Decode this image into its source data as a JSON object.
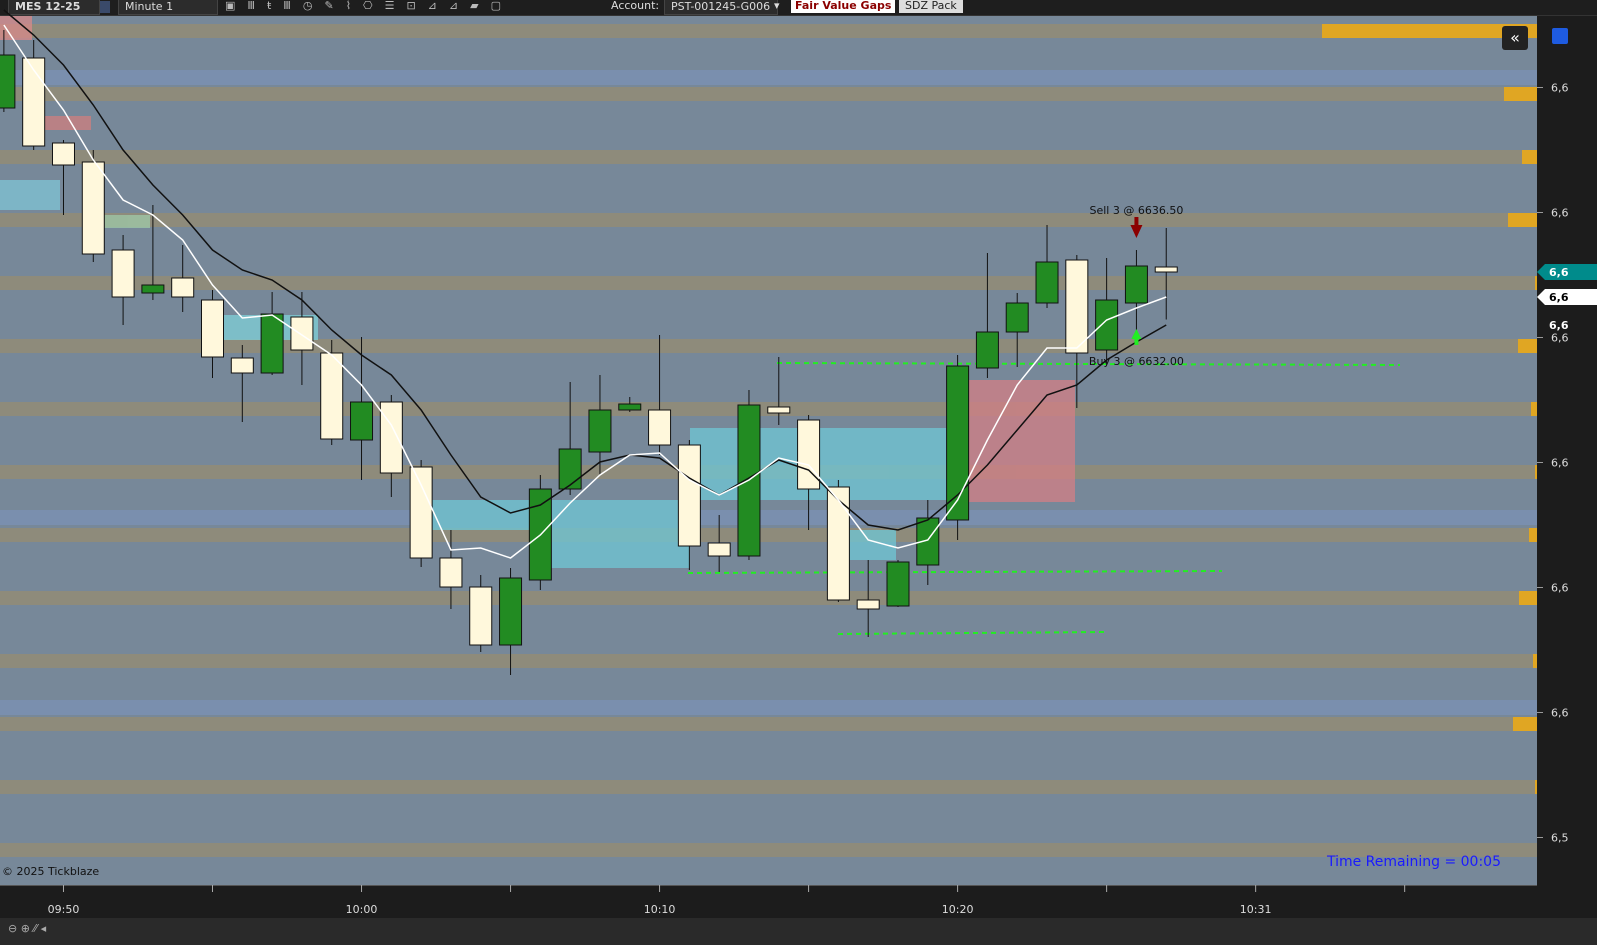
{
  "toolbar": {
    "symbol": "MES 12-25",
    "interval": "Minute 1",
    "account_label": "Account:",
    "account": "PST-001245-G006",
    "buttons": [
      "Fair Value Gaps",
      "SDZ Pack"
    ]
  },
  "footer": {
    "copyright": "© 2025 Tickblaze",
    "timer": "Time Remaining = 00:05"
  },
  "chart_data": {
    "type": "candlestick",
    "x": [
      0,
      1,
      2,
      3,
      4,
      5,
      6,
      7,
      8,
      9,
      10,
      11,
      12,
      13,
      14,
      15,
      16,
      17,
      18,
      19,
      20,
      21,
      22,
      23,
      24,
      25,
      26,
      27,
      28,
      29,
      30,
      31,
      32,
      33,
      34,
      35,
      36,
      37,
      38,
      39
    ],
    "open": [
      6653.36,
      6657.36,
      6650.56,
      6649.04,
      6642.0,
      6638.56,
      6639.76,
      6638.0,
      6633.36,
      6632.16,
      6636.64,
      6633.76,
      6626.8,
      6629.84,
      6624.64,
      6617.36,
      6615.04,
      6610.4,
      6615.6,
      6622.88,
      6625.84,
      6629.2,
      6629.2,
      6626.4,
      6618.56,
      6617.52,
      6629.44,
      6628.4,
      6623.04,
      6614.0,
      6613.52,
      6616.8,
      6620.4,
      6632.56,
      6635.44,
      6637.76,
      6641.2,
      6634.0,
      6637.76,
      6640.64
    ],
    "high": [
      6659.6,
      6658.8,
      6650.8,
      6650.0,
      6643.2,
      6645.6,
      6642.4,
      6638.8,
      6634.4,
      6638.64,
      6638.64,
      6634.8,
      6635.04,
      6630.4,
      6625.2,
      6619.6,
      6616.0,
      6616.56,
      6624.0,
      6631.44,
      6632.0,
      6630.24,
      6635.2,
      6626.8,
      6620.8,
      6630.8,
      6633.44,
      6628.8,
      6623.6,
      6617.2,
      6617.2,
      6622.0,
      6633.6,
      6641.76,
      6638.56,
      6644.0,
      6641.6,
      6641.36,
      6642.0,
      6643.76
    ],
    "low": [
      6653.04,
      6650.0,
      6644.8,
      6641.04,
      6636.0,
      6638.0,
      6637.04,
      6631.76,
      6628.24,
      6632.0,
      6631.2,
      6626.4,
      6623.6,
      6622.24,
      6616.64,
      6613.28,
      6609.84,
      6608.0,
      6614.8,
      6622.4,
      6624.0,
      6629.04,
      6625.6,
      6616.4,
      6616.24,
      6617.2,
      6628.0,
      6619.6,
      6613.84,
      6611.04,
      6613.44,
      6615.2,
      6618.8,
      6631.76,
      6632.64,
      6637.36,
      6629.36,
      6632.96,
      6635.2,
      6636.44
    ],
    "close": [
      6657.6,
      6650.32,
      6648.8,
      6641.68,
      6638.24,
      6639.2,
      6638.24,
      6633.44,
      6632.16,
      6636.88,
      6634.0,
      6626.88,
      6629.84,
      6624.16,
      6617.36,
      6615.04,
      6610.4,
      6615.76,
      6622.88,
      6626.08,
      6629.2,
      6629.68,
      6626.4,
      6618.32,
      6617.52,
      6629.6,
      6628.96,
      6622.88,
      6614.0,
      6613.28,
      6617.04,
      6620.56,
      6632.72,
      6635.44,
      6637.76,
      6641.04,
      6633.76,
      6638.0,
      6640.72,
      6640.24
    ],
    "up_color": "#228b22",
    "down_color": "#fff8dc",
    "lines": [
      {
        "color": "#111111",
        "values": [
          6661.2,
          6659.2,
          6656.8,
          6653.6,
          6650,
          6647.2,
          6644.8,
          6642,
          6640.4,
          6639.6,
          6638,
          6635.6,
          6633.6,
          6632,
          6629.2,
          6625.6,
          6622.24,
          6620.96,
          6621.6,
          6623.2,
          6625.04,
          6625.6,
          6625.36,
          6623.76,
          6622.4,
          6623.76,
          6625.2,
          6624.4,
          6622,
          6620,
          6619.6,
          6620.4,
          6622.4,
          6624.8,
          6627.6,
          6630.4,
          6631.2,
          6633.2,
          6634.64,
          6636
        ]
      },
      {
        "color": "#ffffff",
        "values": [
          6660,
          6656.4,
          6653.2,
          6649.2,
          6646,
          6644.8,
          6642.8,
          6639.2,
          6636.56,
          6636.8,
          6635.2,
          6633.6,
          6631.2,
          6628,
          6623.2,
          6618,
          6618.16,
          6617.36,
          6619.2,
          6621.76,
          6624,
          6625.6,
          6625.76,
          6623.6,
          6622.4,
          6623.6,
          6625.36,
          6624.8,
          6622,
          6618.8,
          6618.16,
          6618.8,
          6622,
          6626.8,
          6631.2,
          6634.16,
          6634.16,
          6636.4,
          6637.36,
          6638.24
        ]
      }
    ],
    "xlim": [
      -0.13,
      51.44
    ],
    "xticks": [
      {
        "value": 2,
        "label": "09:50"
      },
      {
        "value": 12,
        "label": "10:00"
      },
      {
        "value": 22,
        "label": "10:10"
      },
      {
        "value": 32,
        "label": "10:20"
      },
      {
        "value": 42,
        "label": "10:31"
      }
    ],
    "xticks_unlabeled": [
      7,
      17,
      27,
      37,
      47
    ],
    "ylim": [
      6591.2,
      6660.72
    ],
    "yticks": [
      {
        "value": 6655,
        "label": "6,6"
      },
      {
        "value": 6645,
        "label": "6,6"
      },
      {
        "value": 6635,
        "label": "6,6"
      },
      {
        "value": 6625,
        "label": "6,6"
      },
      {
        "value": 6615,
        "label": "6,6"
      },
      {
        "value": 6605,
        "label": "6,6"
      },
      {
        "value": 6595,
        "label": "6,5"
      }
    ],
    "price_markers": [
      {
        "value": 6640.24,
        "label": "6,6",
        "background": "#008b8b",
        "text_color": "#ffffff"
      },
      {
        "value": 6638.24,
        "label": "6,6",
        "background": "#ffffff",
        "text_color": "#000000"
      },
      {
        "value": 6636,
        "label": "6,6",
        "background": "#1c1c1c",
        "text_color": "#ffffff"
      }
    ],
    "annotations": [
      {
        "text": "Sell 3 @ 6636.50",
        "x": 38,
        "side": "sell"
      },
      {
        "text": "Buy 3 @ 6632.00",
        "x": 38,
        "side": "buy"
      }
    ]
  }
}
